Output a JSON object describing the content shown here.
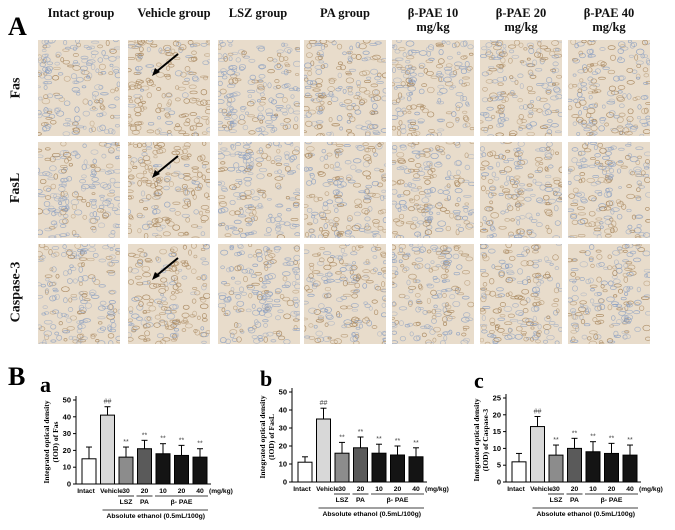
{
  "panel_a": {
    "letter": "A",
    "columns": [
      "Intact group",
      "Vehicle group",
      "LSZ group",
      "PA group",
      "β-PAE 10\nmg/kg",
      "β-PAE 20\nmg/kg",
      "β-PAE 40\nmg/kg"
    ],
    "rows": [
      "Fas",
      "FasL",
      "Caspase-3"
    ]
  },
  "panel_b": {
    "letter": "B"
  },
  "chart_data": [
    {
      "type": "bar",
      "panel": "a",
      "ylabel": "Integrated optical density\n(IOD) of Fas",
      "ylim": [
        0,
        50
      ],
      "yticks": [
        0,
        10,
        20,
        30,
        40,
        50
      ],
      "categories": [
        "Intact",
        "Vehicle",
        "30",
        "20",
        "10",
        "20",
        "40"
      ],
      "values": [
        15,
        41,
        16,
        21,
        18,
        17,
        16
      ],
      "errors": [
        7,
        5,
        6,
        5,
        6,
        6,
        5
      ],
      "significance": [
        "",
        "##",
        "**",
        "**",
        "**",
        "**",
        "**"
      ],
      "group_labels": [
        "LSZ",
        "PA",
        "β- PAE"
      ],
      "unit_label": "(mg/kg)",
      "footer": "Absolute ethanol (0.5mL/100g)"
    },
    {
      "type": "bar",
      "panel": "b",
      "ylabel": "Integrated optical density\n(IOD) of FasL",
      "ylim": [
        0,
        50
      ],
      "yticks": [
        0,
        10,
        20,
        30,
        40,
        50
      ],
      "categories": [
        "Intact",
        "Vehicle",
        "30",
        "20",
        "10",
        "20",
        "40"
      ],
      "values": [
        11,
        35,
        16,
        19,
        16,
        15,
        14
      ],
      "errors": [
        3,
        6,
        6,
        6,
        5,
        5,
        5
      ],
      "significance": [
        "",
        "##",
        "**",
        "**",
        "**",
        "**",
        "**"
      ],
      "group_labels": [
        "LSZ",
        "PA",
        "β- PAE"
      ],
      "unit_label": "(mg/kg)",
      "footer": "Absolute ethanol (0.5mL/100g)"
    },
    {
      "type": "bar",
      "panel": "c",
      "ylabel": "Integrated optical density\n(IOD) of Caspase-3",
      "ylim": [
        0,
        25
      ],
      "yticks": [
        0,
        5,
        10,
        15,
        20,
        25
      ],
      "categories": [
        "Intact",
        "Vehicle",
        "30",
        "20",
        "10",
        "20",
        "40"
      ],
      "values": [
        6,
        16.5,
        8,
        10,
        9,
        8.5,
        8
      ],
      "errors": [
        2.5,
        3,
        3,
        3,
        3,
        3,
        3
      ],
      "significance": [
        "",
        "##",
        "**",
        "**",
        "**",
        "**",
        "**"
      ],
      "group_labels": [
        "LSZ",
        "PA",
        "β- PAE"
      ],
      "unit_label": "(mg/kg)",
      "footer": "Absolute ethanol (0.5mL/100g)"
    }
  ],
  "colors": {
    "intact": "#ffffff",
    "vehicle": "#d8d8d8",
    "lsz": "#8c8c8c",
    "pa": "#5a5a5a",
    "pae": "#141414",
    "tissue_base": "#e8dccb",
    "tissue_dark": "#a8875e",
    "tissue_blue": "#8fa2c2"
  }
}
